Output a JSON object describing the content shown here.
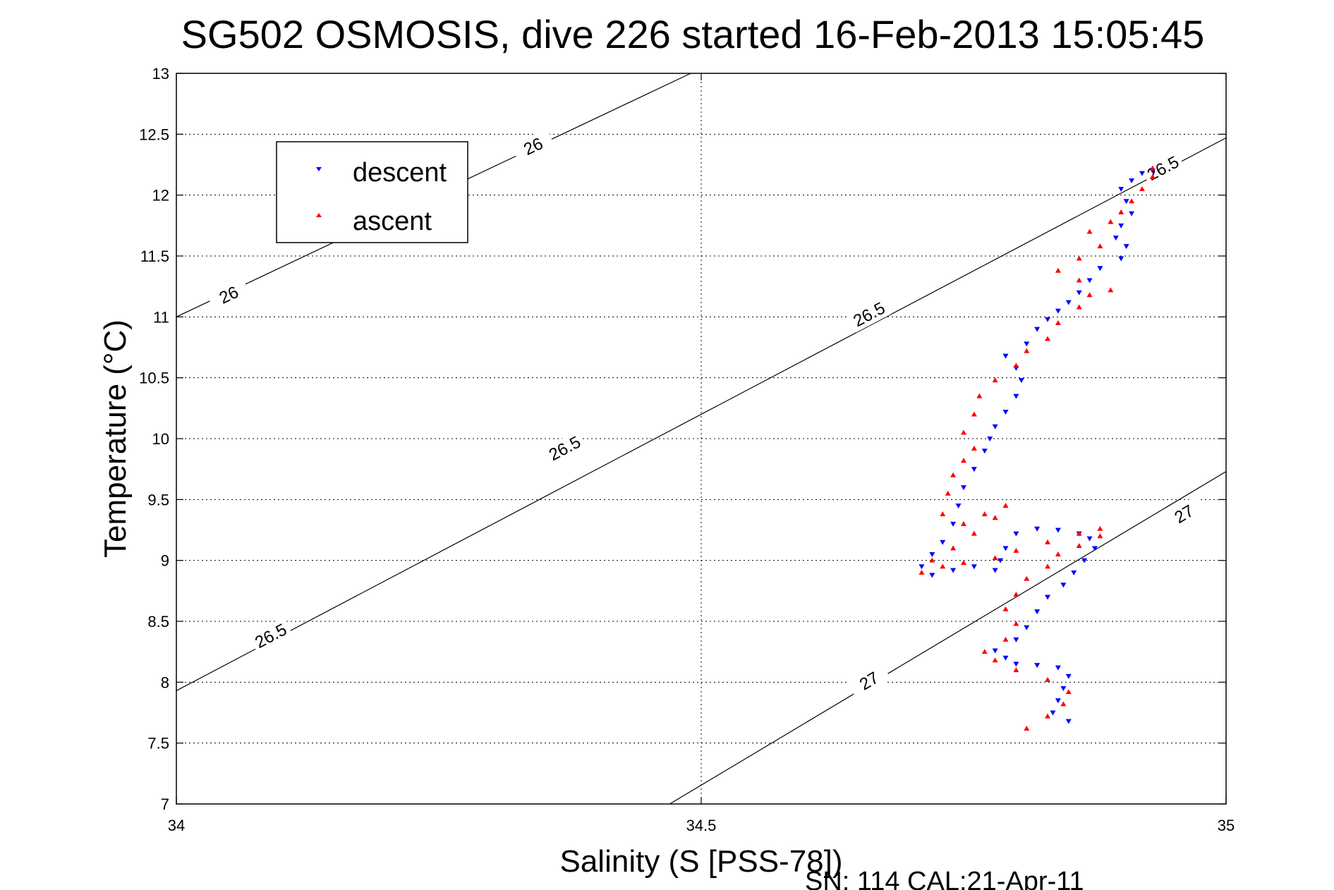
{
  "chart_data": {
    "type": "scatter",
    "title": "SG502 OSMOSIS, dive 226 started 16-Feb-2013 15:05:45",
    "xlabel": "Salinity (S [PSS-78])",
    "ylabel": "Temperature (°C)",
    "footer": "SN: 114  CAL:21-Apr-11",
    "xlim": [
      34,
      35
    ],
    "ylim": [
      7,
      13
    ],
    "x_ticks": [
      "34",
      "34.5",
      "35"
    ],
    "y_ticks": [
      "7",
      "7.5",
      "8",
      "8.5",
      "9",
      "9.5",
      "10",
      "10.5",
      "11",
      "11.5",
      "12",
      "12.5",
      "13"
    ],
    "x_tick_values": [
      34,
      34.5,
      35
    ],
    "y_tick_values": [
      7,
      7.5,
      8,
      8.5,
      9,
      9.5,
      10,
      10.5,
      11,
      11.5,
      12,
      12.5,
      13
    ],
    "grid": true,
    "legend": {
      "position": "top-left"
    },
    "density_contours": [
      {
        "label": "26",
        "points": [
          [
            34,
            11.0
          ],
          [
            34.49,
            13.0
          ]
        ],
        "label_positions": [
          [
            34.05,
            11.18
          ],
          [
            34.34,
            12.4
          ]
        ]
      },
      {
        "label": "26.5",
        "points": [
          [
            34,
            7.93
          ],
          [
            35,
            12.47
          ]
        ],
        "label_positions": [
          [
            34.09,
            8.38
          ],
          [
            34.37,
            9.92
          ],
          [
            34.66,
            11.02
          ],
          [
            34.94,
            12.22
          ]
        ]
      },
      {
        "label": "27",
        "points": [
          [
            34.47,
            7.0
          ],
          [
            35,
            9.73
          ]
        ],
        "label_positions": [
          [
            34.66,
            8.01
          ],
          [
            34.96,
            9.38
          ]
        ]
      }
    ],
    "series": [
      {
        "name": "descent",
        "color": "#0000ff",
        "marker": "triangle-down",
        "points": [
          [
            34.85,
            7.68
          ],
          [
            34.835,
            7.75
          ],
          [
            34.84,
            7.85
          ],
          [
            34.845,
            7.95
          ],
          [
            34.85,
            8.05
          ],
          [
            34.84,
            8.12
          ],
          [
            34.82,
            8.14
          ],
          [
            34.8,
            8.15
          ],
          [
            34.79,
            8.2
          ],
          [
            34.78,
            8.26
          ],
          [
            34.8,
            8.35
          ],
          [
            34.81,
            8.45
          ],
          [
            34.82,
            8.58
          ],
          [
            34.83,
            8.7
          ],
          [
            34.845,
            8.8
          ],
          [
            34.855,
            8.9
          ],
          [
            34.865,
            9.0
          ],
          [
            34.875,
            9.1
          ],
          [
            34.87,
            9.18
          ],
          [
            34.86,
            9.22
          ],
          [
            34.84,
            9.25
          ],
          [
            34.82,
            9.26
          ],
          [
            34.8,
            9.22
          ],
          [
            34.79,
            9.1
          ],
          [
            34.785,
            9.0
          ],
          [
            34.78,
            8.92
          ],
          [
            34.76,
            8.95
          ],
          [
            34.74,
            8.92
          ],
          [
            34.72,
            8.88
          ],
          [
            34.71,
            8.95
          ],
          [
            34.72,
            9.05
          ],
          [
            34.73,
            9.15
          ],
          [
            34.74,
            9.3
          ],
          [
            34.745,
            9.45
          ],
          [
            34.75,
            9.6
          ],
          [
            34.76,
            9.75
          ],
          [
            34.77,
            9.9
          ],
          [
            34.775,
            10.0
          ],
          [
            34.78,
            10.1
          ],
          [
            34.79,
            10.22
          ],
          [
            34.8,
            10.35
          ],
          [
            34.805,
            10.48
          ],
          [
            34.8,
            10.58
          ],
          [
            34.79,
            10.68
          ],
          [
            34.81,
            10.78
          ],
          [
            34.82,
            10.9
          ],
          [
            34.83,
            10.98
          ],
          [
            34.84,
            11.05
          ],
          [
            34.85,
            11.12
          ],
          [
            34.86,
            11.2
          ],
          [
            34.87,
            11.3
          ],
          [
            34.88,
            11.4
          ],
          [
            34.9,
            11.48
          ],
          [
            34.905,
            11.58
          ],
          [
            34.895,
            11.65
          ],
          [
            34.9,
            11.75
          ],
          [
            34.91,
            11.85
          ],
          [
            34.905,
            11.95
          ],
          [
            34.9,
            12.05
          ],
          [
            34.91,
            12.12
          ],
          [
            34.92,
            12.18
          ],
          [
            34.93,
            12.2
          ]
        ]
      },
      {
        "name": "ascent",
        "color": "#ff0000",
        "marker": "triangle-up",
        "points": [
          [
            34.81,
            7.62
          ],
          [
            34.83,
            7.72
          ],
          [
            34.845,
            7.82
          ],
          [
            34.85,
            7.92
          ],
          [
            34.83,
            8.02
          ],
          [
            34.8,
            8.1
          ],
          [
            34.78,
            8.18
          ],
          [
            34.77,
            8.25
          ],
          [
            34.79,
            8.35
          ],
          [
            34.8,
            8.48
          ],
          [
            34.79,
            8.6
          ],
          [
            34.8,
            8.72
          ],
          [
            34.81,
            8.85
          ],
          [
            34.83,
            8.95
          ],
          [
            34.84,
            9.05
          ],
          [
            34.86,
            9.12
          ],
          [
            34.88,
            9.2
          ],
          [
            34.88,
            9.26
          ],
          [
            34.86,
            9.22
          ],
          [
            34.83,
            9.15
          ],
          [
            34.8,
            9.08
          ],
          [
            34.78,
            9.02
          ],
          [
            34.75,
            8.98
          ],
          [
            34.73,
            8.95
          ],
          [
            34.71,
            8.9
          ],
          [
            34.72,
            9.0
          ],
          [
            34.74,
            9.1
          ],
          [
            34.76,
            9.22
          ],
          [
            34.78,
            9.35
          ],
          [
            34.79,
            9.45
          ],
          [
            34.77,
            9.38
          ],
          [
            34.75,
            9.3
          ],
          [
            34.73,
            9.38
          ],
          [
            34.735,
            9.55
          ],
          [
            34.74,
            9.7
          ],
          [
            34.75,
            9.82
          ],
          [
            34.76,
            9.92
          ],
          [
            34.75,
            10.05
          ],
          [
            34.76,
            10.2
          ],
          [
            34.765,
            10.35
          ],
          [
            34.78,
            10.48
          ],
          [
            34.8,
            10.6
          ],
          [
            34.81,
            10.72
          ],
          [
            34.83,
            10.82
          ],
          [
            34.84,
            10.95
          ],
          [
            34.86,
            11.08
          ],
          [
            34.87,
            11.18
          ],
          [
            34.89,
            11.22
          ],
          [
            34.86,
            11.3
          ],
          [
            34.84,
            11.38
          ],
          [
            34.86,
            11.48
          ],
          [
            34.88,
            11.58
          ],
          [
            34.87,
            11.7
          ],
          [
            34.89,
            11.78
          ],
          [
            34.9,
            11.86
          ],
          [
            34.91,
            11.95
          ],
          [
            34.92,
            12.05
          ],
          [
            34.93,
            12.15
          ],
          [
            34.93,
            12.22
          ]
        ]
      }
    ]
  }
}
